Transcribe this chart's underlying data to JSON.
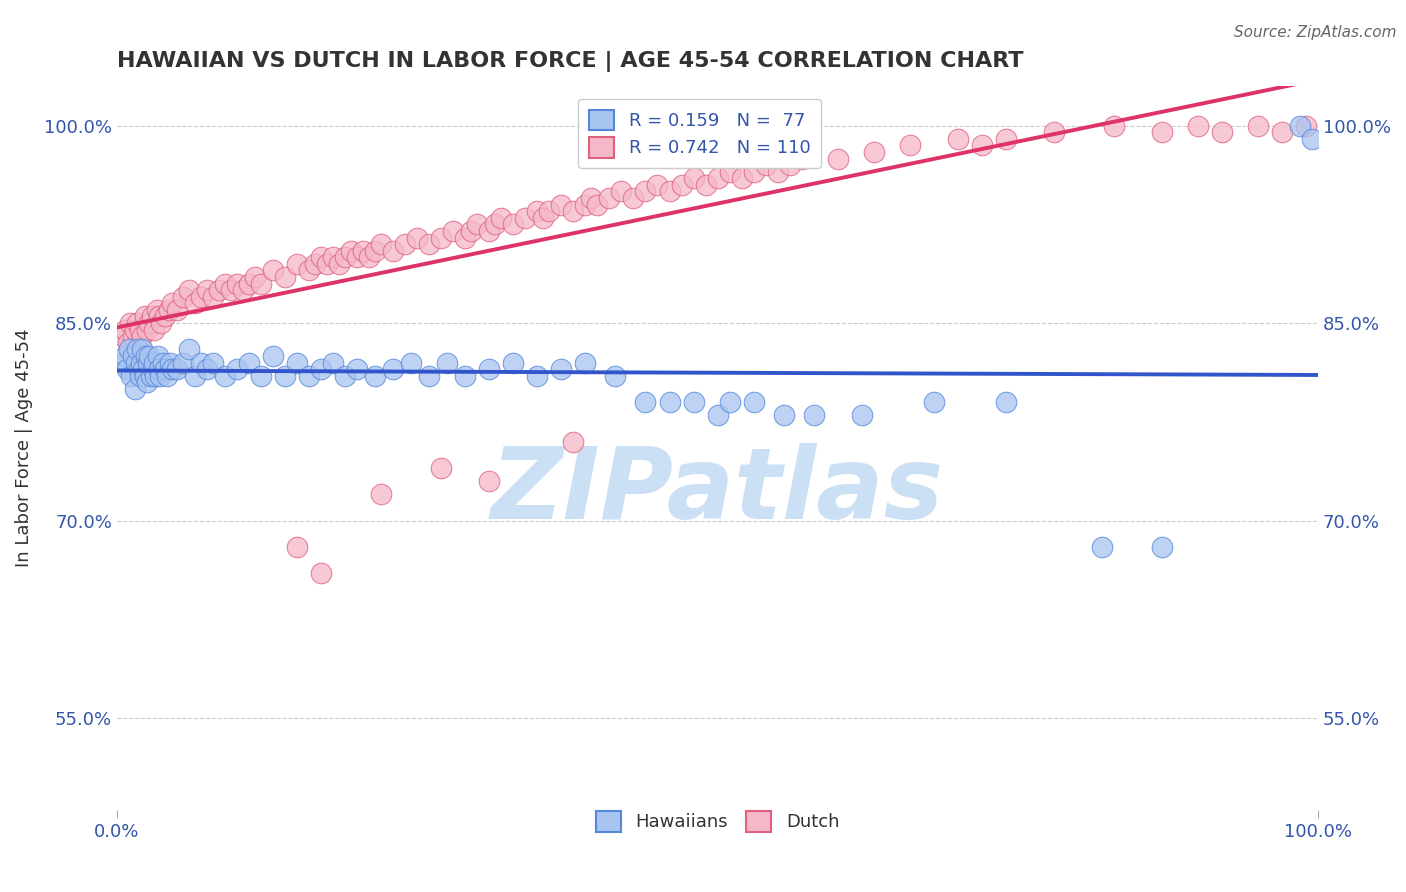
{
  "title": "HAWAIIAN VS DUTCH IN LABOR FORCE | AGE 45-54 CORRELATION CHART",
  "source_text": "Source: ZipAtlas.com",
  "ylabel": "In Labor Force | Age 45-54",
  "xlim": [
    0.0,
    1.0
  ],
  "ylim": [
    0.48,
    1.03
  ],
  "y_ticks": [
    0.55,
    0.7,
    0.85,
    1.0
  ],
  "y_tick_labels": [
    "55.0%",
    "70.0%",
    "85.0%",
    "100.0%"
  ],
  "x_ticks": [
    0.0,
    1.0
  ],
  "x_tick_labels": [
    "0.0%",
    "100.0%"
  ],
  "hawaiian_fill": "#a8c4f0",
  "hawaiian_edge": "#5588dd",
  "dutch_fill": "#f5b8c8",
  "dutch_edge": "#e06080",
  "trendline_blue": "#3355cc",
  "trendline_pink": "#dd3366",
  "background_color": "#ffffff",
  "watermark_text": "ZIPatlas",
  "watermark_color": "#cce0f5",
  "tick_color": "#3355aa",
  "title_color": "#333333",
  "ylabel_color": "#333333",
  "grid_color": "#cccccc",
  "hawaiian_x": [
    0.005,
    0.007,
    0.008,
    0.01,
    0.012,
    0.013,
    0.015,
    0.016,
    0.017,
    0.018,
    0.019,
    0.02,
    0.021,
    0.022,
    0.023,
    0.024,
    0.025,
    0.026,
    0.027,
    0.028,
    0.03,
    0.031,
    0.032,
    0.034,
    0.035,
    0.036,
    0.038,
    0.04,
    0.042,
    0.044,
    0.046,
    0.05,
    0.055,
    0.06,
    0.065,
    0.07,
    0.075,
    0.08,
    0.09,
    0.1,
    0.11,
    0.12,
    0.13,
    0.14,
    0.15,
    0.16,
    0.17,
    0.18,
    0.19,
    0.2,
    0.215,
    0.23,
    0.245,
    0.26,
    0.275,
    0.29,
    0.31,
    0.33,
    0.35,
    0.37,
    0.39,
    0.415,
    0.44,
    0.46,
    0.48,
    0.5,
    0.51,
    0.53,
    0.555,
    0.58,
    0.62,
    0.68,
    0.74,
    0.82,
    0.87,
    0.985,
    0.995
  ],
  "hawaiian_y": [
    0.82,
    0.825,
    0.815,
    0.83,
    0.81,
    0.825,
    0.8,
    0.82,
    0.83,
    0.815,
    0.81,
    0.82,
    0.83,
    0.815,
    0.81,
    0.825,
    0.805,
    0.82,
    0.825,
    0.81,
    0.815,
    0.82,
    0.81,
    0.825,
    0.815,
    0.81,
    0.82,
    0.815,
    0.81,
    0.82,
    0.815,
    0.815,
    0.82,
    0.83,
    0.81,
    0.82,
    0.815,
    0.82,
    0.81,
    0.815,
    0.82,
    0.81,
    0.825,
    0.81,
    0.82,
    0.81,
    0.815,
    0.82,
    0.81,
    0.815,
    0.81,
    0.815,
    0.82,
    0.81,
    0.82,
    0.81,
    0.815,
    0.82,
    0.81,
    0.815,
    0.82,
    0.81,
    0.79,
    0.79,
    0.79,
    0.78,
    0.79,
    0.79,
    0.78,
    0.78,
    0.78,
    0.79,
    0.79,
    0.68,
    0.68,
    1.0,
    0.99
  ],
  "dutch_x": [
    0.005,
    0.007,
    0.009,
    0.011,
    0.013,
    0.015,
    0.017,
    0.019,
    0.021,
    0.023,
    0.025,
    0.027,
    0.029,
    0.031,
    0.033,
    0.035,
    0.037,
    0.04,
    0.043,
    0.046,
    0.05,
    0.055,
    0.06,
    0.065,
    0.07,
    0.075,
    0.08,
    0.085,
    0.09,
    0.095,
    0.1,
    0.105,
    0.11,
    0.115,
    0.12,
    0.13,
    0.14,
    0.15,
    0.16,
    0.165,
    0.17,
    0.175,
    0.18,
    0.185,
    0.19,
    0.195,
    0.2,
    0.205,
    0.21,
    0.215,
    0.22,
    0.23,
    0.24,
    0.25,
    0.26,
    0.27,
    0.28,
    0.29,
    0.295,
    0.3,
    0.31,
    0.315,
    0.32,
    0.33,
    0.34,
    0.35,
    0.355,
    0.36,
    0.37,
    0.38,
    0.39,
    0.395,
    0.4,
    0.41,
    0.42,
    0.43,
    0.44,
    0.45,
    0.46,
    0.47,
    0.48,
    0.49,
    0.5,
    0.51,
    0.52,
    0.53,
    0.54,
    0.55,
    0.56,
    0.57,
    0.6,
    0.63,
    0.66,
    0.7,
    0.72,
    0.74,
    0.78,
    0.83,
    0.87,
    0.9,
    0.92,
    0.95,
    0.97,
    0.99,
    0.15,
    0.17,
    0.22,
    0.27,
    0.31,
    0.38
  ],
  "dutch_y": [
    0.84,
    0.845,
    0.835,
    0.85,
    0.84,
    0.845,
    0.85,
    0.845,
    0.84,
    0.855,
    0.845,
    0.85,
    0.855,
    0.845,
    0.86,
    0.855,
    0.85,
    0.855,
    0.86,
    0.865,
    0.86,
    0.87,
    0.875,
    0.865,
    0.87,
    0.875,
    0.87,
    0.875,
    0.88,
    0.875,
    0.88,
    0.875,
    0.88,
    0.885,
    0.88,
    0.89,
    0.885,
    0.895,
    0.89,
    0.895,
    0.9,
    0.895,
    0.9,
    0.895,
    0.9,
    0.905,
    0.9,
    0.905,
    0.9,
    0.905,
    0.91,
    0.905,
    0.91,
    0.915,
    0.91,
    0.915,
    0.92,
    0.915,
    0.92,
    0.925,
    0.92,
    0.925,
    0.93,
    0.925,
    0.93,
    0.935,
    0.93,
    0.935,
    0.94,
    0.935,
    0.94,
    0.945,
    0.94,
    0.945,
    0.95,
    0.945,
    0.95,
    0.955,
    0.95,
    0.955,
    0.96,
    0.955,
    0.96,
    0.965,
    0.96,
    0.965,
    0.97,
    0.965,
    0.97,
    0.975,
    0.975,
    0.98,
    0.985,
    0.99,
    0.985,
    0.99,
    0.995,
    1.0,
    0.995,
    1.0,
    0.995,
    1.0,
    0.995,
    1.0,
    0.68,
    0.66,
    0.72,
    0.74,
    0.73,
    0.76
  ]
}
